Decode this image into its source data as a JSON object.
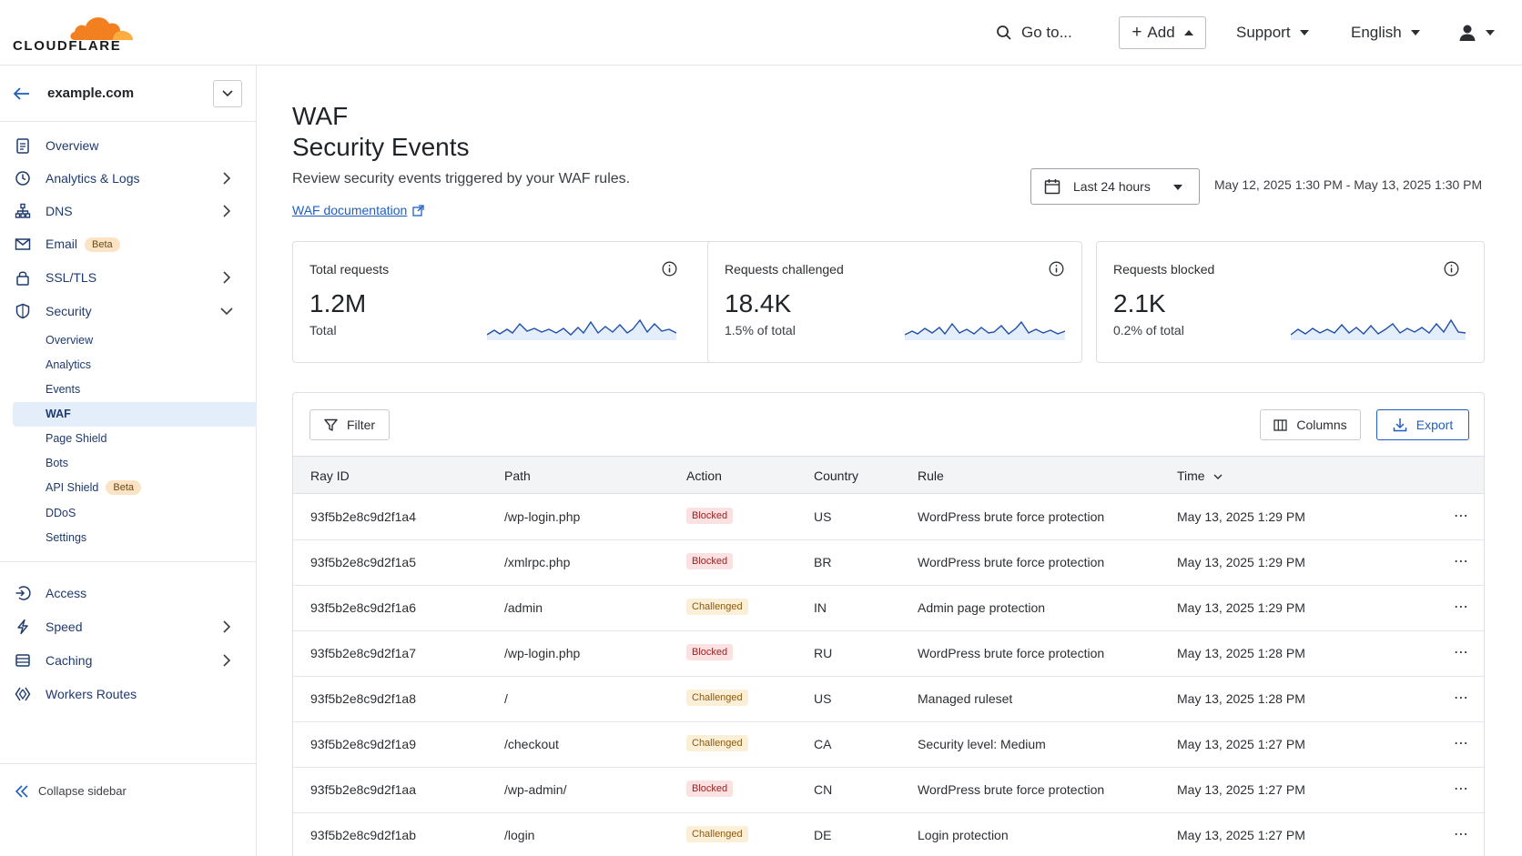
{
  "brand": {
    "name": "CLOUDFLARE",
    "orange": "#f38020",
    "light_orange": "#fbad41"
  },
  "header": {
    "goto": "Go to...",
    "add": "Add",
    "support": "Support",
    "language": "English"
  },
  "sidebar": {
    "zone": "example.com",
    "items": [
      {
        "label": "Overview",
        "icon": "clipboard-icon"
      },
      {
        "label": "Analytics & Logs",
        "icon": "clock-icon"
      },
      {
        "label": "DNS",
        "icon": "network-icon"
      },
      {
        "label": "Email",
        "icon": "mail-icon",
        "badge": "Beta"
      },
      {
        "label": "SSL/TLS",
        "icon": "lock-icon"
      },
      {
        "label": "Security",
        "icon": "shield-icon"
      }
    ],
    "security_sub": [
      "Overview",
      "Analytics",
      "Events",
      "WAF",
      "Page Shield",
      "Bots",
      "API Shield",
      "DDoS",
      "Settings"
    ],
    "api_shield_badge": "Beta",
    "items2": [
      {
        "label": "Access",
        "icon": "access-icon"
      },
      {
        "label": "Speed",
        "icon": "bolt-icon"
      },
      {
        "label": "Caching",
        "icon": "storage-icon"
      },
      {
        "label": "Workers Routes",
        "icon": "workers-icon"
      }
    ],
    "collapse": "Collapse sidebar"
  },
  "page": {
    "title1": "WAF",
    "title2": "Security Events",
    "description": "Review security events triggered by your WAF rules.",
    "doc_link": "WAF documentation",
    "range_select": "Last 24 hours",
    "range_text": "May 12, 2025 1:30 PM - May 13, 2025 1:30 PM"
  },
  "cards": [
    {
      "title": "Total requests",
      "value": "1.2M",
      "sub": "Total"
    },
    {
      "title": "Requests challenged",
      "value": "18.4K",
      "sub": "1.5% of total"
    },
    {
      "title": "Requests blocked",
      "value": "2.1K",
      "sub": "0.2% of total"
    }
  ],
  "table": {
    "filter": "Filter",
    "columns_btn": "Columns",
    "export": "Export",
    "headers": [
      "Ray ID",
      "Path",
      "Action",
      "Country",
      "Rule",
      "Time"
    ],
    "rows": [
      {
        "ray": "93f5b2e8c9d2f1a4",
        "path": "/wp-login.php",
        "action": "Blocked",
        "country": "US",
        "rule": "WordPress brute force protection",
        "time": "May 13, 2025 1:29 PM"
      },
      {
        "ray": "93f5b2e8c9d2f1a5",
        "path": "/xmlrpc.php",
        "action": "Blocked",
        "country": "BR",
        "rule": "WordPress brute force protection",
        "time": "May 13, 2025 1:29 PM"
      },
      {
        "ray": "93f5b2e8c9d2f1a6",
        "path": "/admin",
        "action": "Challenged",
        "country": "IN",
        "rule": "Admin page protection",
        "time": "May 13, 2025 1:29 PM"
      },
      {
        "ray": "93f5b2e8c9d2f1a7",
        "path": "/wp-login.php",
        "action": "Blocked",
        "country": "RU",
        "rule": "WordPress brute force protection",
        "time": "May 13, 2025 1:28 PM"
      },
      {
        "ray": "93f5b2e8c9d2f1a8",
        "path": "/",
        "action": "Challenged",
        "country": "US",
        "rule": "Managed ruleset",
        "time": "May 13, 2025 1:28 PM"
      },
      {
        "ray": "93f5b2e8c9d2f1a9",
        "path": "/checkout",
        "action": "Challenged",
        "country": "CA",
        "rule": "Security level: Medium",
        "time": "May 13, 2025 1:27 PM"
      },
      {
        "ray": "93f5b2e8c9d2f1aa",
        "path": "/wp-admin/",
        "action": "Blocked",
        "country": "CN",
        "rule": "WordPress brute force protection",
        "time": "May 13, 2025 1:27 PM"
      },
      {
        "ray": "93f5b2e8c9d2f1ab",
        "path": "/login",
        "action": "Challenged",
        "country": "DE",
        "rule": "Login protection",
        "time": "May 13, 2025 1:27 PM"
      }
    ]
  }
}
